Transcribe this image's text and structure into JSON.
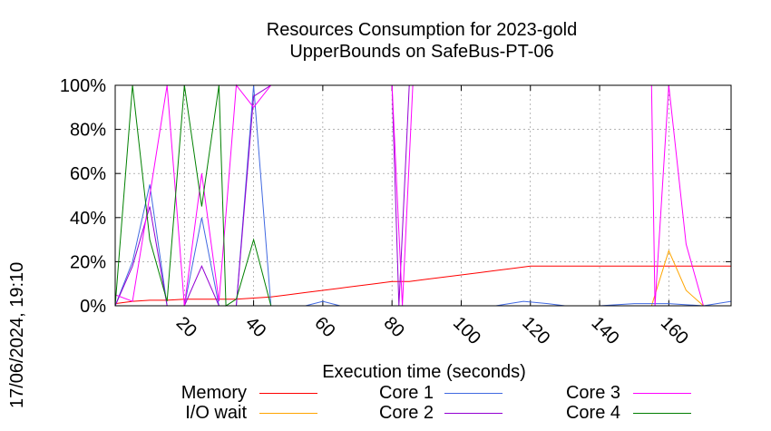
{
  "title_line1": "Resources Consumption for 2023-gold",
  "title_line2": "UpperBounds on SafeBus-PT-06",
  "timestamp": "17/06/2024, 19:10",
  "chart_data": {
    "type": "line",
    "xlabel": "Execution time (seconds)",
    "ylabel": "",
    "xlim": [
      0,
      178
    ],
    "ylim": [
      0,
      100
    ],
    "x_ticks": [
      20,
      40,
      60,
      80,
      100,
      120,
      140,
      160
    ],
    "y_ticks": [
      "0%",
      "20%",
      "40%",
      "60%",
      "80%",
      "100%"
    ],
    "y_tick_values": [
      0,
      20,
      40,
      60,
      80,
      100
    ],
    "grid": "dashed",
    "legend_position": "bottom",
    "series": [
      {
        "name": "Memory",
        "color": "#ff0000",
        "points": [
          [
            0,
            1
          ],
          [
            5,
            2
          ],
          [
            10,
            2.5
          ],
          [
            15,
            2.5
          ],
          [
            20,
            3
          ],
          [
            25,
            3
          ],
          [
            30,
            3
          ],
          [
            35,
            3
          ],
          [
            40,
            3.5
          ],
          [
            45,
            4
          ],
          [
            50,
            5
          ],
          [
            55,
            6
          ],
          [
            60,
            7
          ],
          [
            65,
            8
          ],
          [
            70,
            9
          ],
          [
            75,
            10
          ],
          [
            80,
            11
          ],
          [
            85,
            11
          ],
          [
            90,
            12
          ],
          [
            95,
            13
          ],
          [
            100,
            14
          ],
          [
            105,
            15
          ],
          [
            110,
            16
          ],
          [
            115,
            17
          ],
          [
            120,
            18
          ],
          [
            125,
            18
          ],
          [
            130,
            18
          ],
          [
            140,
            18
          ],
          [
            150,
            18
          ],
          [
            160,
            18
          ],
          [
            170,
            18
          ],
          [
            178,
            18
          ]
        ]
      },
      {
        "name": "I/O wait",
        "color": "#ffa500",
        "points": [
          [
            0,
            0
          ],
          [
            140,
            0
          ],
          [
            155,
            0
          ],
          [
            160,
            25
          ],
          [
            165,
            7
          ],
          [
            170,
            0
          ],
          [
            178,
            0
          ]
        ]
      },
      {
        "name": "Core 1",
        "color": "#4169e1",
        "points": [
          [
            0,
            0
          ],
          [
            5,
            20
          ],
          [
            10,
            55
          ],
          [
            15,
            0
          ],
          [
            20,
            0
          ],
          [
            25,
            40
          ],
          [
            30,
            0
          ],
          [
            35,
            0
          ],
          [
            40,
            100
          ],
          [
            45,
            0
          ],
          [
            55,
            0
          ],
          [
            60,
            2
          ],
          [
            65,
            0
          ],
          [
            80,
            0
          ],
          [
            90,
            0
          ],
          [
            110,
            0
          ],
          [
            118,
            2
          ],
          [
            125,
            1
          ],
          [
            130,
            0
          ],
          [
            140,
            0
          ],
          [
            150,
            1
          ],
          [
            160,
            1
          ],
          [
            170,
            0
          ],
          [
            178,
            2
          ]
        ]
      },
      {
        "name": "Core 2",
        "color": "#9400d3",
        "points": [
          [
            0,
            0
          ],
          [
            5,
            18
          ],
          [
            10,
            45
          ],
          [
            15,
            0
          ],
          [
            20,
            0
          ],
          [
            25,
            18
          ],
          [
            30,
            0
          ],
          [
            35,
            0
          ],
          [
            40,
            95
          ],
          [
            45,
            100
          ],
          [
            80,
            100
          ],
          [
            82,
            0
          ],
          [
            85,
            100
          ],
          [
            178,
            100
          ]
        ]
      },
      {
        "name": "Core 3",
        "color": "#ff00ff",
        "points": [
          [
            0,
            5
          ],
          [
            5,
            2
          ],
          [
            10,
            50
          ],
          [
            15,
            100
          ],
          [
            20,
            0
          ],
          [
            25,
            60
          ],
          [
            30,
            2
          ],
          [
            35,
            100
          ],
          [
            40,
            90
          ],
          [
            45,
            100
          ],
          [
            80,
            100
          ],
          [
            83,
            0
          ],
          [
            86,
            100
          ],
          [
            155,
            100
          ],
          [
            156,
            0
          ],
          [
            160,
            100
          ],
          [
            165,
            28
          ],
          [
            170,
            0
          ],
          [
            178,
            0
          ]
        ]
      },
      {
        "name": "Core 4",
        "color": "#008000",
        "points": [
          [
            0,
            0
          ],
          [
            5,
            100
          ],
          [
            10,
            30
          ],
          [
            15,
            2
          ],
          [
            20,
            100
          ],
          [
            25,
            45
          ],
          [
            30,
            100
          ],
          [
            32,
            0
          ],
          [
            35,
            3
          ],
          [
            40,
            30
          ],
          [
            45,
            0
          ],
          [
            50,
            0
          ],
          [
            178,
            0
          ]
        ]
      }
    ]
  }
}
